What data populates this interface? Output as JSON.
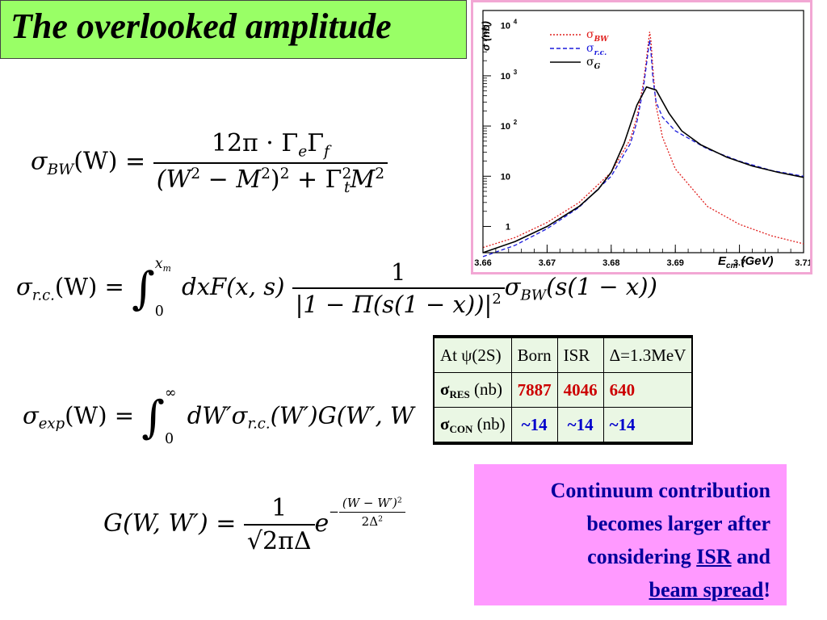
{
  "title": "The overlooked amplitude",
  "equations": {
    "bw": {
      "lhs_sigma": "σ",
      "lhs_sub": "BW",
      "lhs_arg": "(W) =",
      "num": "12π · Γ",
      "num_sub1": "e",
      "num_mid": "Γ",
      "num_sub2": "f",
      "den_a": "(W",
      "den_b": " − M",
      "den_c": ")",
      "den_d": " + Γ",
      "den_e": "t",
      "den_f": "M",
      "two": "2"
    },
    "rc": {
      "lhs_sigma": "σ",
      "lhs_sub": "r.c.",
      "lhs_arg": "(W) =",
      "upper": "x",
      "upper_sub": "m",
      "lower": "0",
      "body": "dxF(x, s)",
      "frac_num": "1",
      "frac_den": "|1 − Π(s(1 − x))|",
      "frac_den_sup": "2",
      "tail_sigma": "σ",
      "tail_sub": "BW",
      "tail_arg": "(s(1 − x))"
    },
    "exp": {
      "lhs_sigma": "σ",
      "lhs_sub": "exp",
      "lhs_arg": "(W) =",
      "upper": "∞",
      "lower": "0",
      "body": "dW′σ",
      "body_sub": "r.c.",
      "body_tail": "(W′)G(W′, W"
    },
    "g": {
      "lhs": "G(W, W′) =",
      "num": "1",
      "den": "√2πΔ",
      "e": "e",
      "exp_sign": "−",
      "exp_num": "(W − W′)",
      "exp_num_sup": "2",
      "exp_den": "2Δ",
      "exp_den_sup": "2"
    }
  },
  "chart_data": {
    "type": "line",
    "xlabel": "E",
    "xlabel_sub": "cm",
    "xlabel_unit": "(GeV)",
    "ylabel": "σ (nb)",
    "xlim": [
      3.66,
      3.71
    ],
    "ylim_log": [
      0.3,
      20000
    ],
    "x_ticks": [
      "3.66",
      "3.67",
      "3.68",
      "3.69",
      "3.7",
      "3.71"
    ],
    "y_ticks": [
      {
        "value": 1,
        "label": "1",
        "sup": ""
      },
      {
        "value": 10,
        "label": "10",
        "sup": ""
      },
      {
        "value": 100,
        "label": "10",
        "sup": "2"
      },
      {
        "value": 1000,
        "label": "10",
        "sup": "3"
      },
      {
        "value": 10000,
        "label": "10",
        "sup": "4"
      }
    ],
    "series": [
      {
        "name": "σ",
        "name_sub": "BW",
        "color": "#e0201e",
        "dash": "2,2",
        "x": [
          3.66,
          3.665,
          3.67,
          3.675,
          3.68,
          3.683,
          3.684,
          3.685,
          3.6855,
          3.686,
          3.6862,
          3.6865,
          3.687,
          3.688,
          3.69,
          3.695,
          3.7,
          3.705,
          3.71
        ],
        "y": [
          0.38,
          0.6,
          1.2,
          3.0,
          12,
          55,
          150,
          700,
          2200,
          7500,
          5000,
          1400,
          250,
          60,
          14,
          2.5,
          1.1,
          0.65,
          0.45
        ]
      },
      {
        "name": "σ",
        "name_sub": "r.c.",
        "color": "#1a1adc",
        "dash": "5,3",
        "x": [
          3.66,
          3.665,
          3.67,
          3.675,
          3.68,
          3.683,
          3.684,
          3.685,
          3.6855,
          3.686,
          3.6862,
          3.6865,
          3.687,
          3.688,
          3.69,
          3.695,
          3.7,
          3.705,
          3.71
        ],
        "y": [
          0.25,
          0.42,
          0.9,
          2.4,
          10,
          45,
          120,
          550,
          1700,
          5200,
          3000,
          900,
          300,
          150,
          80,
          35,
          20,
          13,
          10
        ]
      },
      {
        "name": "σ",
        "name_sub": "G",
        "color": "#000000",
        "dash": "",
        "x": [
          3.66,
          3.665,
          3.67,
          3.675,
          3.678,
          3.68,
          3.682,
          3.684,
          3.6855,
          3.687,
          3.689,
          3.691,
          3.694,
          3.698,
          3.702,
          3.706,
          3.71
        ],
        "y": [
          0.3,
          0.5,
          1.0,
          2.5,
          5.5,
          12,
          45,
          260,
          600,
          520,
          180,
          80,
          42,
          24,
          16,
          12,
          9.5
        ]
      }
    ]
  },
  "table": {
    "header": [
      "At ψ(2S)",
      "Born",
      "ISR",
      "Δ=1.3MeV"
    ],
    "rows": [
      {
        "label_sigma": "σ",
        "label_sub": "RES",
        "label_unit": " (nb)",
        "values": [
          "7887",
          "4046",
          "640"
        ]
      },
      {
        "label_sigma": "σ",
        "label_sub": "CON",
        "label_unit": " (nb)",
        "values": [
          "~14",
          "~14",
          "~14"
        ]
      }
    ]
  },
  "note": {
    "line1": "Continuum contribution",
    "line2": "becomes larger after",
    "line3a": "considering ",
    "line3b": "ISR",
    "line3c": " and",
    "line4": "beam spread",
    "line4b": "!"
  }
}
